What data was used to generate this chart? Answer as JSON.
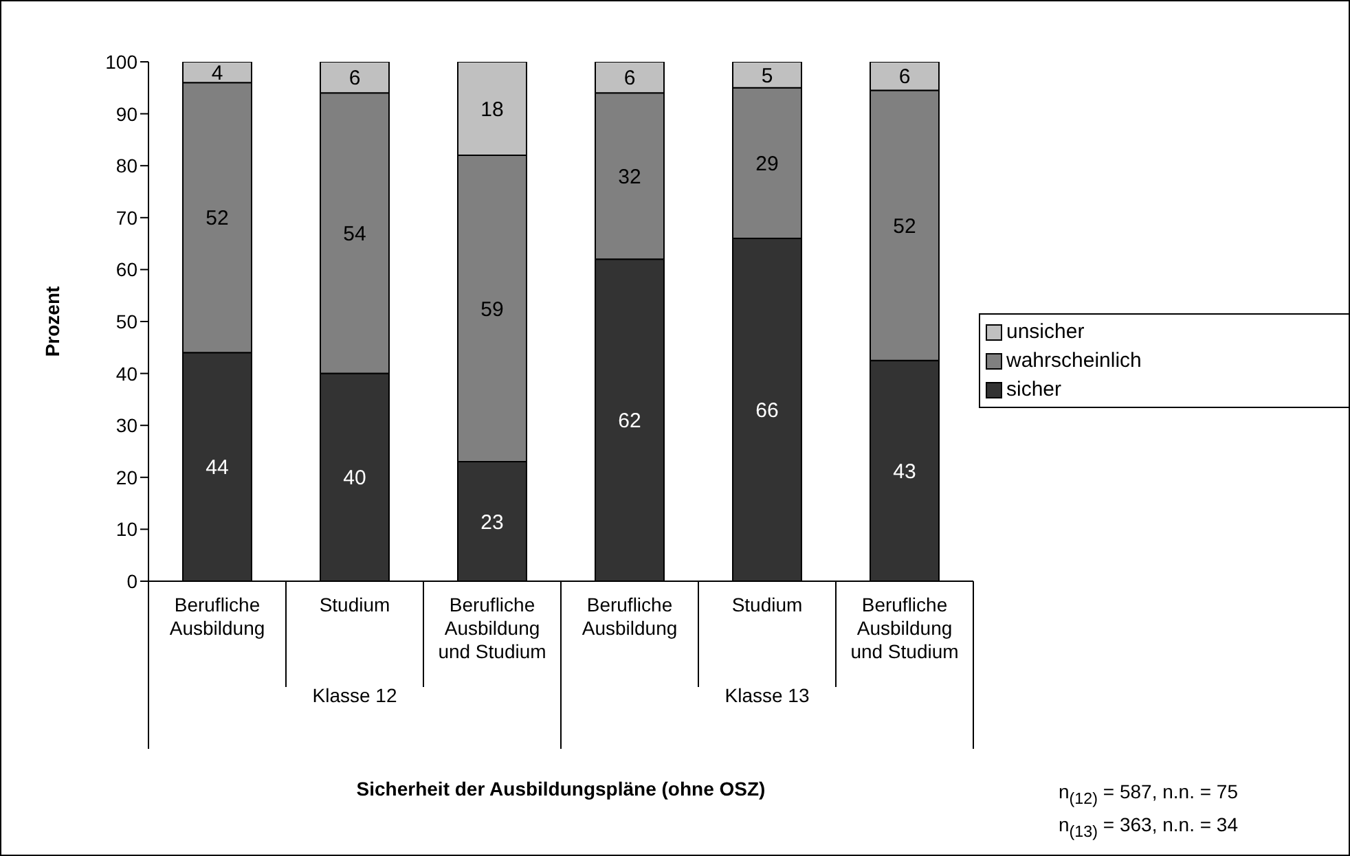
{
  "chart_data": {
    "type": "bar",
    "stacked": true,
    "ylabel": "Prozent",
    "categories": [
      "Berufliche Ausbildung",
      "Studium",
      "Berufliche Ausbildung und Studium",
      "Berufliche Ausbildung",
      "Studium",
      "Berufliche Ausbildung und Studium"
    ],
    "series": [
      {
        "name": "sicher",
        "color": "#333333",
        "values": [
          44,
          40,
          23,
          62,
          66,
          42.5
        ],
        "value_labels": [
          "44",
          "40",
          "23",
          "62",
          "66",
          "43"
        ]
      },
      {
        "name": "wahrscheinlich",
        "color": "#808080",
        "values": [
          52,
          54,
          59,
          32,
          29,
          52
        ],
        "value_labels": [
          "52",
          "54",
          "59",
          "32",
          "29",
          "52"
        ]
      },
      {
        "name": "unsicher",
        "color": "#c0c0c0",
        "values": [
          4,
          6,
          18,
          6,
          5,
          5.5
        ],
        "value_labels": [
          "4",
          "6",
          "18",
          "6",
          "5",
          "6"
        ]
      }
    ],
    "ylim": [
      0,
      100
    ],
    "yticks": [
      0,
      10,
      20,
      30,
      40,
      50,
      60,
      70,
      80,
      90,
      100
    ],
    "legend": "right",
    "annotations": [
      "Klasse 12",
      "Klasse 13",
      "Sicherheit der Ausbildungspläne (ohne OSZ)",
      "n$_{(12)}$ = 587, n.n. = 75",
      "n$_{(13)}$ = 363, n.n. = 34"
    ]
  }
}
